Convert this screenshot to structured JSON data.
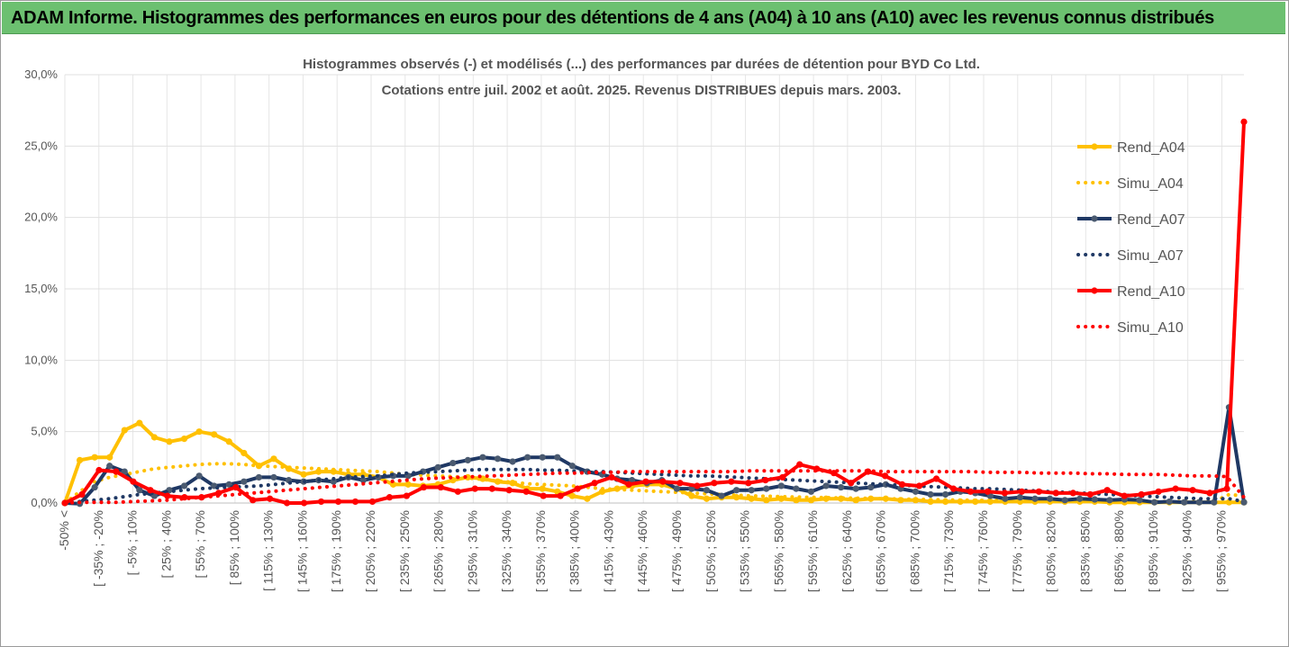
{
  "banner": {
    "title": "ADAM Informe. Histogrammes des performances en euros pour des détentions de 4 ans (A04) à 10 ans (A10) avec les revenus connus distribués"
  },
  "chart_data": {
    "type": "line",
    "title_lines": [
      "Histogrammes observés (-) et modélisés (...) des performances par durées de détention pour BYD Co Ltd.",
      "Cotations entre juil. 2002 et août. 2025. Revenus DISTRIBUES depuis mars. 2003."
    ],
    "ylim": [
      0,
      30
    ],
    "y_ticks": [
      "0,0%",
      "5,0%",
      "10,0%",
      "15,0%",
      "20,0%",
      "25,0%",
      "30,0%"
    ],
    "x_tick_labels": [
      "-50% <",
      "[ -35% ; -20%",
      "[ -5% ; 10%",
      "[ 25% ; 40%",
      "[ 55% ; 70%",
      "[ 85% ; 100%",
      "[ 115% ; 130%",
      "[ 145% ; 160%",
      "[ 175% ; 190%",
      "[ 205% ; 220%",
      "[ 235% ; 250%",
      "[ 265% ; 280%",
      "[ 295% ; 310%",
      "[ 325% ; 340%",
      "[ 355% ; 370%",
      "[ 385% ; 400%",
      "[ 415% ; 430%",
      "[ 445% ; 460%",
      "[ 475% ; 490%",
      "[ 505% ; 520%",
      "[ 535% ; 550%",
      "[ 565% ; 580%",
      "[ 595% ; 610%",
      "[ 625% ; 640%",
      "[ 655% ; 670%",
      "[ 685% ; 700%",
      "[ 715% ; 730%",
      "[ 745% ; 760%",
      "[ 775% ; 790%",
      "[ 805% ; 820%",
      "[ 835% ; 850%",
      "[ 865% ; 880%",
      "[ 895% ; 910%",
      "[ 925% ; 940%",
      "[ 955% ; 970%"
    ],
    "grid": true,
    "legend_position": "right",
    "series": [
      {
        "name": "Rend_A04",
        "style": "solid",
        "color": "#FFC000",
        "values": [
          0.0,
          3.0,
          3.2,
          3.2,
          5.1,
          5.6,
          4.6,
          4.3,
          4.5,
          5.0,
          4.8,
          4.3,
          3.5,
          2.6,
          3.1,
          2.4,
          2.0,
          2.2,
          2.2,
          2.0,
          2.0,
          1.8,
          1.3,
          1.3,
          1.2,
          1.3,
          1.6,
          1.8,
          1.7,
          1.5,
          1.4,
          1.0,
          1.0,
          0.8,
          0.5,
          0.3,
          0.8,
          1.0,
          1.2,
          1.3,
          1.3,
          1.0,
          0.5,
          0.3,
          0.4,
          0.4,
          0.3,
          0.2,
          0.3,
          0.2,
          0.2,
          0.3,
          0.3,
          0.2,
          0.3,
          0.3,
          0.2,
          0.2,
          0.1,
          0.1,
          0.1,
          0.1,
          0.1,
          0.1,
          0.1,
          0.1,
          0.1,
          0.1,
          0.1,
          0.1,
          0.05,
          0.05,
          0.05,
          0.05,
          0.05,
          0.05,
          0.05,
          0.05,
          0.05,
          0.05
        ]
      },
      {
        "name": "Simu_A04",
        "style": "dotted",
        "color": "#FFC000",
        "values": [
          0.0,
          0.8,
          1.5,
          1.8,
          2.0,
          2.2,
          2.4,
          2.5,
          2.6,
          2.7,
          2.75,
          2.75,
          2.7,
          2.6,
          2.55,
          2.5,
          2.45,
          2.4,
          2.35,
          2.3,
          2.25,
          2.2,
          2.1,
          2.0,
          1.95,
          1.9,
          1.85,
          1.75,
          1.65,
          1.55,
          1.45,
          1.35,
          1.3,
          1.25,
          1.2,
          1.1,
          1.0,
          0.95,
          0.9,
          0.85,
          0.8,
          0.75,
          0.7,
          0.65,
          0.6,
          0.55,
          0.5,
          0.48,
          0.45,
          0.42,
          0.4,
          0.38,
          0.36,
          0.34,
          0.32,
          0.3,
          0.28,
          0.26,
          0.24,
          0.22,
          0.2,
          0.19,
          0.18,
          0.17,
          0.16,
          0.15,
          0.14,
          0.13,
          0.12,
          0.11,
          0.1,
          0.1,
          0.1,
          0.1,
          0.1,
          0.1,
          0.1,
          0.1,
          0.6,
          0.5
        ]
      },
      {
        "name": "Rend_A07",
        "style": "solid",
        "color": "#1F3864",
        "values": [
          0.0,
          -0.05,
          1.1,
          2.6,
          2.2,
          0.9,
          0.5,
          0.9,
          1.2,
          1.9,
          1.2,
          1.3,
          1.5,
          1.8,
          1.8,
          1.6,
          1.5,
          1.6,
          1.5,
          1.8,
          1.6,
          1.8,
          1.9,
          1.9,
          2.2,
          2.5,
          2.8,
          3.0,
          3.2,
          3.1,
          2.9,
          3.2,
          3.2,
          3.2,
          2.6,
          2.2,
          2.0,
          1.7,
          1.6,
          1.4,
          1.6,
          1.0,
          1.0,
          0.9,
          0.5,
          0.9,
          0.9,
          1.0,
          1.2,
          1.0,
          0.8,
          1.2,
          1.1,
          1.0,
          1.1,
          1.3,
          1.0,
          0.8,
          0.6,
          0.6,
          0.8,
          0.7,
          0.5,
          0.3,
          0.4,
          0.3,
          0.3,
          0.2,
          0.3,
          0.25,
          0.2,
          0.25,
          0.2,
          0.05,
          0.1,
          0.05,
          0.05,
          0.05,
          6.7,
          0.05
        ]
      },
      {
        "name": "Simu_A07",
        "style": "dotted",
        "color": "#1F3864",
        "values": [
          0.0,
          0.1,
          0.2,
          0.3,
          0.45,
          0.6,
          0.7,
          0.8,
          0.9,
          1.0,
          1.05,
          1.1,
          1.15,
          1.2,
          1.3,
          1.4,
          1.5,
          1.6,
          1.7,
          1.8,
          1.85,
          1.9,
          2.0,
          2.1,
          2.15,
          2.2,
          2.25,
          2.3,
          2.35,
          2.35,
          2.35,
          2.35,
          2.3,
          2.3,
          2.25,
          2.2,
          2.2,
          2.15,
          2.1,
          2.05,
          2.0,
          1.95,
          1.9,
          1.9,
          1.85,
          1.8,
          1.75,
          1.7,
          1.65,
          1.6,
          1.55,
          1.5,
          1.45,
          1.4,
          1.35,
          1.3,
          1.25,
          1.2,
          1.15,
          1.1,
          1.05,
          1.0,
          1.0,
          0.95,
          0.9,
          0.85,
          0.8,
          0.75,
          0.7,
          0.65,
          0.6,
          0.55,
          0.5,
          0.45,
          0.4,
          0.35,
          0.3,
          0.3,
          0.3,
          0.1
        ]
      },
      {
        "name": "Rend_A10",
        "style": "solid",
        "color": "#FF0000",
        "values": [
          0.0,
          0.6,
          2.3,
          2.2,
          1.5,
          0.9,
          0.5,
          0.4,
          0.4,
          0.7,
          1.1,
          0.2,
          0.3,
          0.0,
          0.0,
          0.1,
          0.1,
          0.1,
          0.1,
          0.4,
          0.5,
          1.1,
          1.1,
          0.8,
          1.0,
          1.0,
          0.9,
          0.8,
          0.5,
          0.5,
          1.0,
          1.4,
          1.8,
          1.3,
          1.5,
          1.5,
          1.4,
          1.2,
          1.4,
          1.5,
          1.4,
          1.6,
          1.8,
          2.7,
          2.4,
          2.1,
          1.4,
          2.2,
          1.9,
          1.3,
          1.2,
          1.7,
          1.0,
          0.8,
          0.8,
          0.7,
          0.8,
          0.8,
          0.7,
          0.7,
          0.6,
          0.9,
          0.5,
          0.6,
          0.8,
          1.0,
          0.9,
          0.7,
          1.0,
          26.7
        ]
      },
      {
        "name": "Simu_A10",
        "style": "dotted",
        "color": "#FF0000",
        "values": [
          0.0,
          0.05,
          0.05,
          0.05,
          0.1,
          0.15,
          0.2,
          0.3,
          0.4,
          0.5,
          0.6,
          0.7,
          0.8,
          0.9,
          1.0,
          1.1,
          1.2,
          1.3,
          1.4,
          1.5,
          1.6,
          1.7,
          1.75,
          1.8,
          1.85,
          1.9,
          1.95,
          2.0,
          2.05,
          2.1,
          2.1,
          2.15,
          2.15,
          2.2,
          2.2,
          2.2,
          2.2,
          2.2,
          2.2,
          2.2,
          2.25,
          2.25,
          2.25,
          2.25,
          2.25,
          2.25,
          2.25,
          2.25,
          2.2,
          2.2,
          2.2,
          2.2,
          2.2,
          2.2,
          2.15,
          2.15,
          2.15,
          2.1,
          2.1,
          2.1,
          2.05,
          2.05,
          2.0,
          2.0,
          2.0,
          1.95,
          1.9,
          1.9,
          1.85,
          0.4
        ]
      }
    ]
  }
}
